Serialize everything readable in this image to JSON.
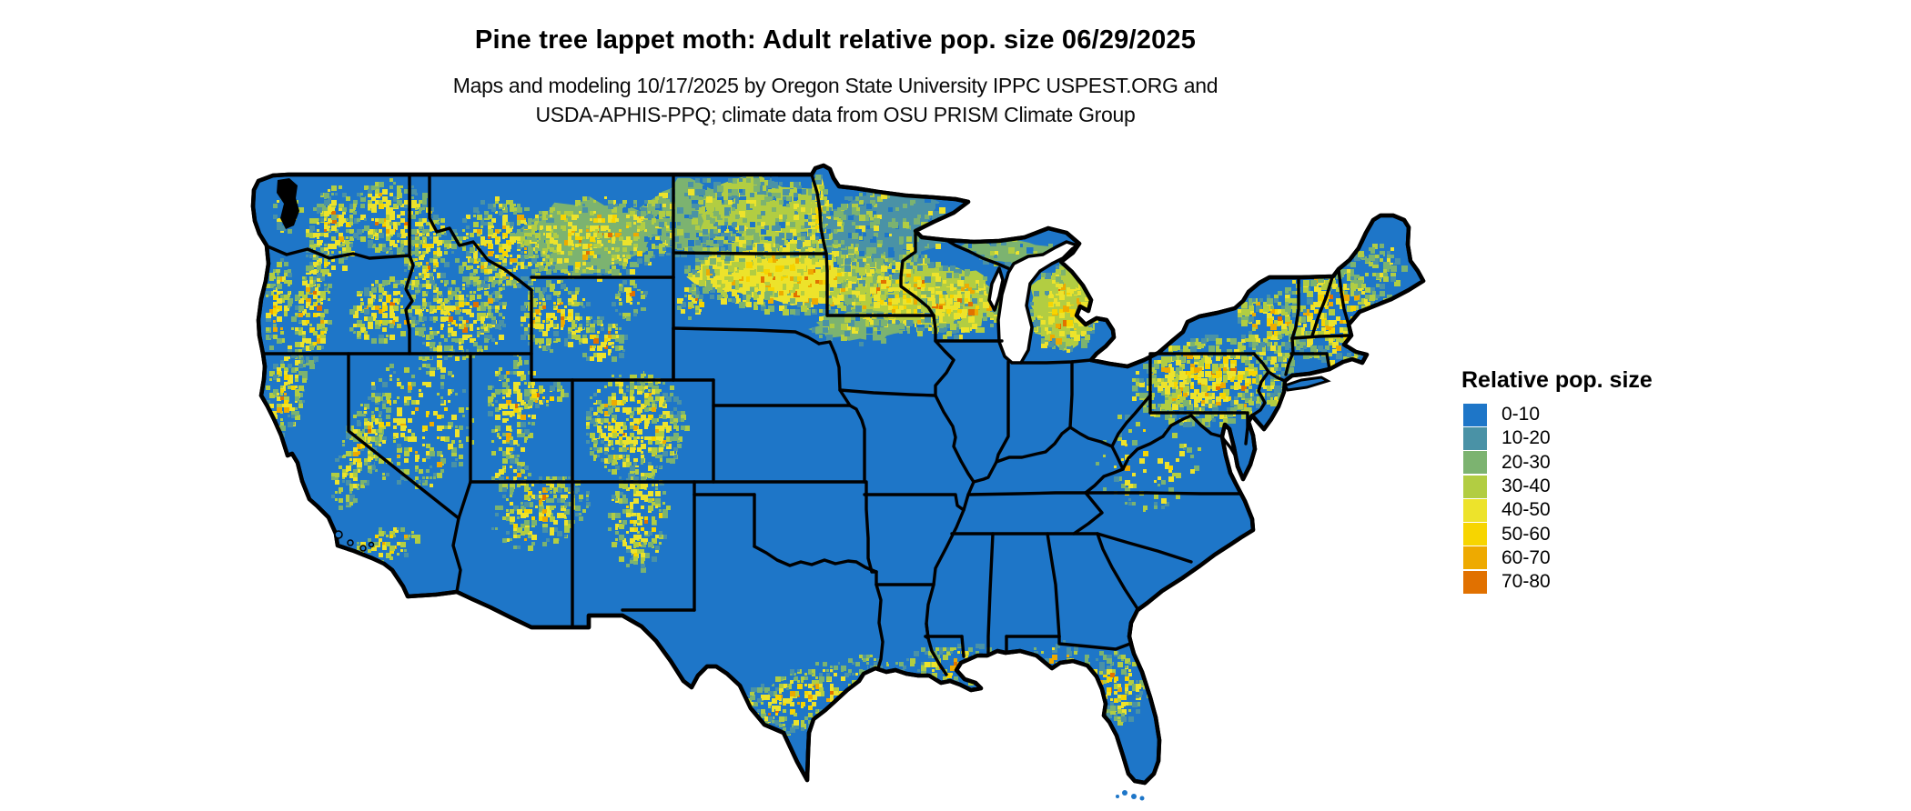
{
  "header": {
    "title": "Pine tree lappet moth: Adult relative pop. size 06/29/2025",
    "subtitle_line1": "Maps and modeling 10/17/2025 by Oregon State University IPPC USPEST.ORG and",
    "subtitle_line2": "USDA-APHIS-PPQ; climate data from OSU PRISM Climate Group"
  },
  "legend": {
    "title": "Relative pop. size",
    "classes": [
      {
        "range": "0-10",
        "color": "#1e76c8"
      },
      {
        "range": "10-20",
        "color": "#4a92a6"
      },
      {
        "range": "20-30",
        "color": "#7cb370"
      },
      {
        "range": "30-40",
        "color": "#b2cd42"
      },
      {
        "range": "40-50",
        "color": "#ede32b"
      },
      {
        "range": "50-60",
        "color": "#f7d500"
      },
      {
        "range": "60-70",
        "color": "#eeaa00"
      },
      {
        "range": "70-80",
        "color": "#e17100"
      }
    ]
  },
  "map": {
    "base_color": "#1e76c8",
    "water_color": "#ffffff",
    "border_color": "#000000",
    "regions_format": [
      "name",
      "x",
      "y",
      "rx",
      "ry",
      "rot_deg",
      "density",
      "base_class",
      "profile"
    ],
    "regions": [
      [
        "olympics",
        312,
        232,
        13,
        20,
        0,
        2.0,
        0,
        "mtn"
      ],
      [
        "wa-cascades",
        362,
        252,
        24,
        46,
        8,
        2.2,
        0,
        "mtn"
      ],
      [
        "ne-wa-okanogan",
        428,
        238,
        42,
        38,
        0,
        2.0,
        0,
        "mtn"
      ],
      [
        "or-coast-range",
        304,
        332,
        13,
        46,
        5,
        1.8,
        0,
        "mtn"
      ],
      [
        "or-cascades",
        340,
        346,
        19,
        54,
        5,
        2.2,
        0,
        "mtn"
      ],
      [
        "blue-mtns",
        422,
        338,
        42,
        30,
        -20,
        1.8,
        0,
        "mtn"
      ],
      [
        "id-panhandle",
        468,
        278,
        24,
        40,
        15,
        1.9,
        0,
        "mtn"
      ],
      [
        "id-central",
        505,
        348,
        46,
        40,
        -10,
        2.1,
        0,
        "mtn"
      ],
      [
        "mt-west",
        548,
        268,
        48,
        46,
        -15,
        2.1,
        0,
        "mtn"
      ],
      [
        "mt-central",
        652,
        260,
        80,
        40,
        -5,
        1.7,
        3,
        "mtn"
      ],
      [
        "mt-ne-nd-w",
        758,
        238,
        55,
        40,
        0,
        0.9,
        3,
        "plain"
      ],
      [
        "nd-main",
        835,
        235,
        70,
        40,
        0,
        1.3,
        4,
        "plain"
      ],
      [
        "red-river-valley",
        898,
        248,
        10,
        52,
        0,
        2.3,
        5,
        "band"
      ],
      [
        "nd-sd-band",
        872,
        302,
        112,
        36,
        3,
        2.0,
        5,
        "band"
      ],
      [
        "mn-north",
        968,
        252,
        68,
        42,
        -8,
        1.3,
        2,
        "plain"
      ],
      [
        "mn-south-wi",
        995,
        322,
        75,
        38,
        5,
        1.5,
        4,
        "band"
      ],
      [
        "wi-central",
        1052,
        332,
        42,
        34,
        0,
        1.7,
        4,
        "band"
      ],
      [
        "mi-upper-peninsula",
        1112,
        276,
        50,
        14,
        5,
        1.2,
        3,
        "plain"
      ],
      [
        "mi-mitten",
        1168,
        336,
        36,
        44,
        0,
        1.7,
        4,
        "band"
      ],
      [
        "iowa-north-edge",
        945,
        358,
        52,
        16,
        0,
        1.0,
        3,
        "plain"
      ],
      [
        "black-hills",
        757,
        332,
        15,
        17,
        0,
        1.9,
        0,
        "mtn"
      ],
      [
        "yellowstone",
        606,
        346,
        36,
        34,
        -10,
        1.9,
        0,
        "mtn"
      ],
      [
        "wy-wind-river",
        658,
        372,
        28,
        23,
        20,
        1.7,
        0,
        "mtn"
      ],
      [
        "bighorn",
        690,
        326,
        15,
        21,
        10,
        1.8,
        0,
        "mtn"
      ],
      [
        "wasatch",
        560,
        448,
        24,
        54,
        5,
        1.9,
        0,
        "mtn"
      ],
      [
        "uinta",
        596,
        432,
        24,
        13,
        0,
        1.7,
        0,
        "mtn"
      ],
      [
        "co-rockies",
        696,
        466,
        50,
        54,
        5,
        2.3,
        0,
        "mtn"
      ],
      [
        "nm-sangre",
        700,
        566,
        28,
        54,
        5,
        1.7,
        0,
        "mtn"
      ],
      [
        "az-mogollon",
        592,
        562,
        52,
        33,
        -25,
        1.6,
        0,
        "mtn"
      ],
      [
        "az-kaibab",
        562,
        522,
        19,
        17,
        0,
        1.5,
        0,
        "mtn"
      ],
      [
        "nv-basin-ranges",
        455,
        462,
        58,
        66,
        10,
        0.85,
        0,
        "mtn"
      ],
      [
        "sierra-nevada",
        394,
        492,
        19,
        62,
        20,
        2.1,
        0,
        "mtn"
      ],
      [
        "ca-north-coast",
        312,
        428,
        19,
        44,
        10,
        1.9,
        0,
        "mtn"
      ],
      [
        "socal-transverse",
        422,
        598,
        33,
        17,
        -15,
        1.5,
        0,
        "mtn"
      ],
      [
        "tx-gulf-band",
        882,
        766,
        100,
        30,
        -18,
        1.9,
        0,
        "coast"
      ],
      [
        "la-coast",
        1040,
        730,
        52,
        21,
        -5,
        1.8,
        0,
        "coast"
      ],
      [
        "fl-north",
        1218,
        754,
        40,
        36,
        0,
        2.0,
        0,
        "coast"
      ],
      [
        "fl-panhandle",
        1162,
        722,
        32,
        15,
        0,
        1.0,
        0,
        "coast"
      ],
      [
        "appalachia-sparse",
        1262,
        502,
        50,
        58,
        25,
        0.35,
        0,
        "mtn"
      ],
      [
        "pa-ny-band",
        1332,
        416,
        82,
        44,
        -8,
        2.0,
        0,
        "band"
      ],
      [
        "adirondack-catskill",
        1392,
        352,
        33,
        30,
        0,
        1.5,
        0,
        "band"
      ],
      [
        "new-england",
        1462,
        345,
        52,
        48,
        20,
        1.6,
        0,
        "band"
      ],
      [
        "maine-interior",
        1506,
        296,
        33,
        28,
        30,
        1.2,
        0,
        "plain"
      ]
    ],
    "features": [
      "puget-sound",
      "great-lakes",
      "long-island",
      "channel-islands",
      "florida-keys"
    ]
  }
}
